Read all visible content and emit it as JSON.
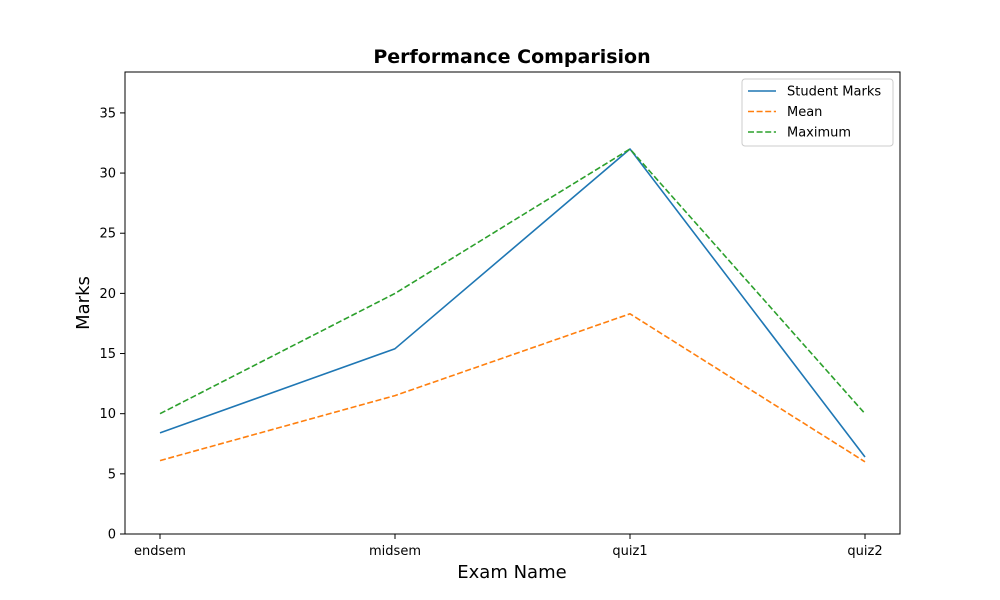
{
  "chart_data": {
    "type": "line",
    "title": "Performance Comparision",
    "xlabel": "Exam Name",
    "ylabel": "Marks",
    "categories": [
      "endsem",
      "midsem",
      "quiz1",
      "quiz2"
    ],
    "ylim": [
      0,
      38.4
    ],
    "yticks": [
      0,
      5,
      10,
      15,
      20,
      25,
      30,
      35
    ],
    "grid": false,
    "legend_position": "top-right",
    "series": [
      {
        "name": "Student Marks",
        "values": [
          8.4,
          15.4,
          32.0,
          6.4
        ],
        "color": "#1f77b4",
        "style": "solid"
      },
      {
        "name": "Mean",
        "values": [
          6.1,
          11.5,
          18.3,
          6.0
        ],
        "color": "#ff7f0e",
        "style": "dashed"
      },
      {
        "name": "Maximum",
        "values": [
          10.0,
          20.0,
          32.0,
          10.0
        ],
        "color": "#2ca02c",
        "style": "dashed"
      }
    ]
  }
}
